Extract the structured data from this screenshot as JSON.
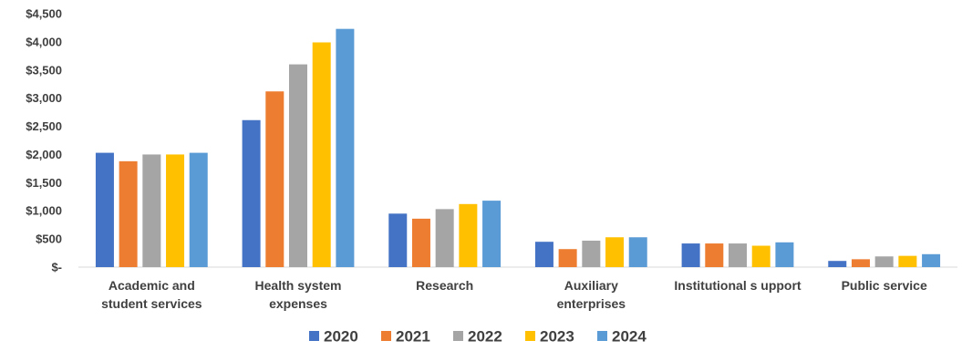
{
  "chart_data": {
    "type": "bar",
    "categories": [
      [
        "Academic and",
        "student services"
      ],
      [
        "Health system",
        "expenses"
      ],
      [
        "Research"
      ],
      [
        "Auxiliary",
        "enterprises"
      ],
      [
        "Institutional s upport"
      ],
      [
        "Public service"
      ]
    ],
    "series": [
      {
        "name": "2020",
        "color": "#4472C4",
        "values": [
          2030,
          2610,
          950,
          450,
          420,
          110
        ]
      },
      {
        "name": "2021",
        "color": "#ED7D31",
        "values": [
          1880,
          3120,
          860,
          320,
          420,
          140
        ]
      },
      {
        "name": "2022",
        "color": "#A5A5A5",
        "values": [
          2000,
          3600,
          1030,
          470,
          420,
          190
        ]
      },
      {
        "name": "2023",
        "color": "#FFC000",
        "values": [
          2000,
          3990,
          1120,
          530,
          380,
          200
        ]
      },
      {
        "name": "2024",
        "color": "#5B9BD5",
        "values": [
          2030,
          4230,
          1180,
          530,
          440,
          230
        ]
      }
    ],
    "ylim": [
      0,
      4500
    ],
    "yticks": [
      0,
      500,
      1000,
      1500,
      2000,
      2500,
      3000,
      3500,
      4000,
      4500
    ],
    "ytick_labels": [
      "$-",
      "$500",
      "$1,000",
      "$1,500",
      "$2,000",
      "$2,500",
      "$3,000",
      "$3,500",
      "$4,000",
      "$4,500"
    ],
    "grid": false,
    "legend_position": "bottom",
    "title": "",
    "xlabel": "",
    "ylabel": ""
  }
}
